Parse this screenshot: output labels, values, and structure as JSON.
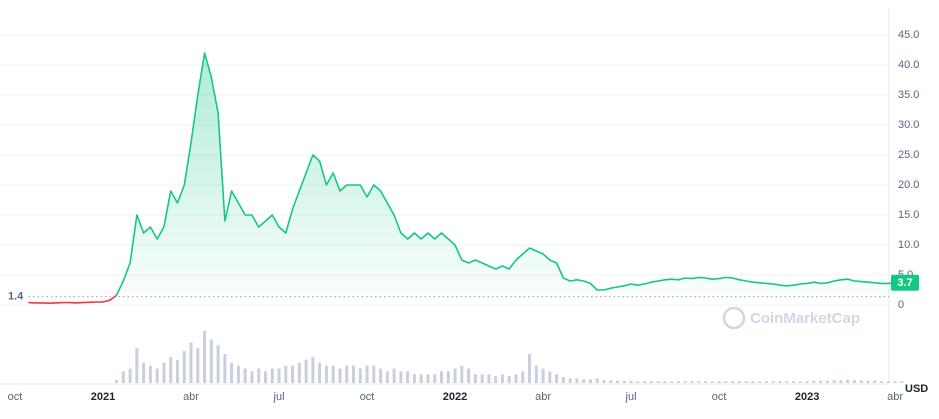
{
  "chart_data": {
    "type": "line",
    "categories": [
      "oct",
      null,
      null,
      null,
      null,
      null,
      null,
      null,
      null,
      null,
      null,
      null,
      null,
      "2021",
      null,
      null,
      null,
      null,
      null,
      null,
      null,
      null,
      null,
      null,
      null,
      null,
      "abr",
      null,
      null,
      null,
      null,
      null,
      null,
      null,
      null,
      null,
      null,
      null,
      null,
      "jul",
      null,
      null,
      null,
      null,
      null,
      null,
      null,
      null,
      null,
      null,
      null,
      null,
      "oct",
      null,
      null,
      null,
      null,
      null,
      null,
      null,
      null,
      null,
      null,
      null,
      null,
      "2022",
      null,
      null,
      null,
      null,
      null,
      null,
      null,
      null,
      null,
      null,
      null,
      null,
      "abr",
      null,
      null,
      null,
      null,
      null,
      null,
      null,
      null,
      null,
      null,
      null,
      null,
      "jul",
      null,
      null,
      null,
      null,
      null,
      null,
      null,
      null,
      null,
      null,
      null,
      null,
      "oct",
      null,
      null,
      null,
      null,
      null,
      null,
      null,
      null,
      null,
      null,
      null,
      null,
      "2023",
      null,
      null,
      null,
      null,
      null,
      null,
      null,
      null,
      null,
      null,
      null,
      null,
      "abr",
      null
    ],
    "values": [
      null,
      null,
      0.4,
      0.35,
      0.35,
      0.3,
      0.35,
      0.4,
      0.4,
      0.35,
      0.4,
      0.45,
      0.5,
      0.5,
      0.8,
      1.6,
      4,
      7,
      15,
      12,
      13,
      11,
      13,
      19,
      17,
      20,
      27,
      35,
      42,
      38,
      32,
      14,
      19,
      17,
      15,
      15,
      13,
      14,
      15,
      13,
      12,
      16,
      19,
      22,
      25,
      24,
      20,
      22,
      19,
      20,
      20,
      20,
      18,
      20,
      19,
      17,
      15,
      12,
      11,
      12,
      11,
      12,
      11,
      12,
      11,
      10,
      7.5,
      7,
      7.5,
      7,
      6.5,
      6,
      6.5,
      6,
      7.5,
      8.5,
      9.5,
      9,
      8.5,
      7.5,
      7,
      4.5,
      4,
      4.2,
      4,
      3.6,
      2.5,
      2.5,
      2.8,
      3,
      3.2,
      3.5,
      3.3,
      3.5,
      3.8,
      4,
      4.2,
      4.3,
      4.2,
      4.5,
      4.4,
      4.6,
      4.5,
      4.3,
      4.4,
      4.6,
      4.5,
      4.2,
      4,
      3.8,
      3.7,
      3.6,
      3.5,
      3.3,
      3.2,
      3.3,
      3.5,
      3.6,
      3.8,
      3.6,
      3.7,
      4,
      4.2,
      4.3,
      4,
      3.9,
      3.8,
      3.7,
      3.6,
      3.6,
      3.7,
      3.7
    ],
    "last_label": "3.7",
    "volume": [
      0,
      0,
      0,
      0,
      0,
      0,
      0,
      0,
      0,
      0,
      0,
      0,
      0,
      0,
      0,
      5,
      20,
      25,
      60,
      35,
      30,
      25,
      35,
      45,
      40,
      55,
      70,
      60,
      90,
      75,
      65,
      50,
      35,
      30,
      25,
      20,
      25,
      20,
      25,
      25,
      30,
      30,
      35,
      40,
      45,
      35,
      30,
      30,
      25,
      30,
      30,
      25,
      30,
      30,
      25,
      20,
      25,
      20,
      20,
      15,
      15,
      15,
      15,
      20,
      20,
      25,
      30,
      25,
      15,
      15,
      15,
      12,
      15,
      12,
      15,
      20,
      50,
      30,
      25,
      20,
      15,
      10,
      8,
      8,
      6,
      6,
      8,
      5,
      5,
      4,
      4,
      4,
      3,
      3,
      3,
      3,
      3,
      3,
      3,
      3,
      3,
      3,
      3,
      3,
      3,
      3,
      3,
      3,
      3,
      3,
      3,
      3,
      3,
      3,
      3,
      3,
      3,
      3,
      4,
      4,
      4,
      5,
      5,
      6,
      5,
      5,
      4,
      4,
      3,
      3,
      3,
      3
    ],
    "vlim": [
      0,
      100
    ],
    "volume_color": "#c9cfdc",
    "ylim": [
      0,
      45
    ],
    "yticks": [
      0,
      {
        "value": 5,
        "label": "5.0"
      },
      {
        "value": 10,
        "label": "10.0"
      },
      {
        "value": 15,
        "label": "15.0"
      },
      {
        "value": 20,
        "label": "20.0"
      },
      {
        "value": 25,
        "label": "25.0"
      },
      {
        "value": 30,
        "label": "30.0"
      },
      {
        "value": 35,
        "label": "35.0"
      },
      {
        "value": 40,
        "label": "40.0"
      },
      {
        "value": 45,
        "label": "45.0"
      }
    ],
    "baseline": {
      "value": 1.4,
      "label": "1.4"
    },
    "color_above": "#16c784",
    "color_below": "#ea3943",
    "grid": true,
    "currency": "USD",
    "watermark": "CoinMarketCap"
  }
}
